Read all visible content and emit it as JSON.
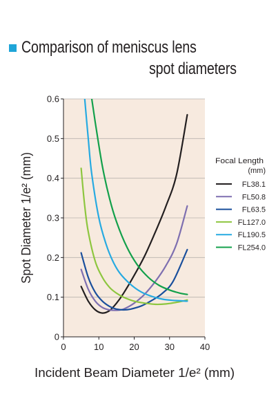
{
  "header": {
    "title_line1": "Comparison of meniscus lens",
    "title_line2": "spot diameters",
    "marker_color": "#1fa5d8"
  },
  "chart_data": {
    "type": "line",
    "title": "Comparison of meniscus lens spot diameters",
    "xlabel": "Incident Beam Diameter  1/e² (mm)",
    "ylabel": "Spot Diameter 1/e² (mm)",
    "xlim": [
      0,
      40
    ],
    "ylim": [
      0,
      0.6
    ],
    "xticks": [
      "0",
      "10",
      "20",
      "30",
      "40"
    ],
    "yticks": [
      "0",
      "0.1",
      "0.2",
      "0.3",
      "0.4",
      "0.5",
      "0.6"
    ],
    "grid": "horizontal",
    "plot_background": "#f7eadf",
    "legend": {
      "title_line1": "Focal Length",
      "title_line2": "(mm)",
      "position": "right"
    },
    "series": [
      {
        "name": "FL38.1",
        "color": "#231f20",
        "points": [
          [
            5,
            0.127
          ],
          [
            7,
            0.09
          ],
          [
            9,
            0.068
          ],
          [
            11,
            0.06
          ],
          [
            13,
            0.066
          ],
          [
            15,
            0.085
          ],
          [
            17,
            0.11
          ],
          [
            20,
            0.155
          ],
          [
            23,
            0.205
          ],
          [
            26,
            0.265
          ],
          [
            29,
            0.33
          ],
          [
            32,
            0.41
          ],
          [
            35,
            0.56
          ]
        ]
      },
      {
        "name": "FL50.8",
        "color": "#7e6fb0",
        "points": [
          [
            5,
            0.17
          ],
          [
            7,
            0.12
          ],
          [
            9,
            0.09
          ],
          [
            11,
            0.074
          ],
          [
            13,
            0.068
          ],
          [
            15,
            0.067
          ],
          [
            17,
            0.07
          ],
          [
            20,
            0.085
          ],
          [
            23,
            0.108
          ],
          [
            26,
            0.14
          ],
          [
            29,
            0.18
          ],
          [
            32,
            0.235
          ],
          [
            35,
            0.33
          ]
        ]
      },
      {
        "name": "FL63.5",
        "color": "#1a4f9c",
        "points": [
          [
            5,
            0.212
          ],
          [
            7,
            0.15
          ],
          [
            9,
            0.112
          ],
          [
            11,
            0.09
          ],
          [
            13,
            0.077
          ],
          [
            15,
            0.07
          ],
          [
            17,
            0.068
          ],
          [
            19,
            0.07
          ],
          [
            22,
            0.078
          ],
          [
            25,
            0.092
          ],
          [
            28,
            0.11
          ],
          [
            31,
            0.14
          ],
          [
            35,
            0.22
          ]
        ]
      },
      {
        "name": "FL127.0",
        "color": "#8dc63f",
        "points": [
          [
            5,
            0.425
          ],
          [
            6,
            0.33
          ],
          [
            7,
            0.265
          ],
          [
            9,
            0.19
          ],
          [
            11,
            0.15
          ],
          [
            13,
            0.125
          ],
          [
            15,
            0.11
          ],
          [
            17,
            0.1
          ],
          [
            20,
            0.09
          ],
          [
            23,
            0.085
          ],
          [
            26,
            0.082
          ],
          [
            29,
            0.083
          ],
          [
            32,
            0.087
          ],
          [
            35,
            0.093
          ]
        ]
      },
      {
        "name": "FL190.5",
        "color": "#27aae1",
        "points": [
          [
            6,
            0.6
          ],
          [
            7,
            0.5
          ],
          [
            8,
            0.41
          ],
          [
            10,
            0.3
          ],
          [
            12,
            0.235
          ],
          [
            14,
            0.19
          ],
          [
            16,
            0.16
          ],
          [
            19,
            0.132
          ],
          [
            22,
            0.113
          ],
          [
            25,
            0.102
          ],
          [
            28,
            0.095
          ],
          [
            31,
            0.092
          ],
          [
            35,
            0.09
          ]
        ]
      },
      {
        "name": "FL254.0",
        "color": "#13a04b",
        "points": [
          [
            8,
            0.6
          ],
          [
            9,
            0.54
          ],
          [
            11,
            0.43
          ],
          [
            13,
            0.35
          ],
          [
            15,
            0.29
          ],
          [
            18,
            0.225
          ],
          [
            21,
            0.18
          ],
          [
            24,
            0.15
          ],
          [
            27,
            0.13
          ],
          [
            30,
            0.118
          ],
          [
            33,
            0.11
          ],
          [
            35,
            0.107
          ]
        ]
      }
    ]
  }
}
